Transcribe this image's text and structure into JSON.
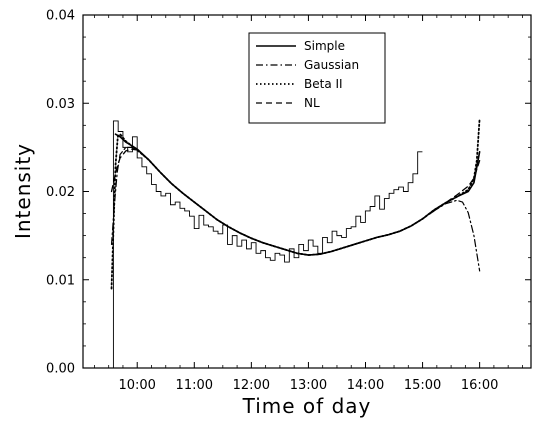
{
  "chart_data": {
    "type": "line",
    "title": "",
    "xlabel": "Time of day",
    "ylabel": "Intensity",
    "xlim": [
      9.05,
      16.9
    ],
    "ylim": [
      0.0,
      0.04
    ],
    "x_ticks": [
      10,
      11,
      12,
      13,
      14,
      15,
      16
    ],
    "x_tick_labels": [
      "10:00",
      "11:00",
      "12:00",
      "13:00",
      "14:00",
      "15:00",
      "16:00"
    ],
    "y_ticks": [
      0.0,
      0.01,
      0.02,
      0.03,
      0.04
    ],
    "y_tick_labels": [
      "0.00",
      "0.01",
      "0.02",
      "0.03",
      "0.04"
    ],
    "grid": false,
    "legend_position": "top-center",
    "histogram": {
      "bin_width": 0.0833,
      "start": 9.583,
      "values": [
        0.028,
        0.0268,
        0.025,
        0.0245,
        0.0262,
        0.0238,
        0.0228,
        0.022,
        0.0208,
        0.02,
        0.0195,
        0.0198,
        0.0185,
        0.0188,
        0.0181,
        0.0178,
        0.0172,
        0.0158,
        0.0173,
        0.0162,
        0.016,
        0.0155,
        0.0152,
        0.0162,
        0.014,
        0.015,
        0.0138,
        0.0145,
        0.0135,
        0.0142,
        0.013,
        0.0133,
        0.0125,
        0.0122,
        0.013,
        0.0128,
        0.012,
        0.0135,
        0.0125,
        0.014,
        0.0133,
        0.0145,
        0.0138,
        0.013,
        0.0148,
        0.0142,
        0.0155,
        0.015,
        0.0148,
        0.0158,
        0.016,
        0.0172,
        0.0165,
        0.0178,
        0.0183,
        0.0195,
        0.018,
        0.0192,
        0.0198,
        0.0202,
        0.0205,
        0.02,
        0.021,
        0.022,
        0.0245
      ]
    },
    "series": [
      {
        "name": "Simple",
        "style": "solid",
        "x": [
          9.62,
          9.7,
          9.8,
          9.9,
          10.0,
          10.2,
          10.4,
          10.6,
          10.8,
          11.0,
          11.2,
          11.4,
          11.6,
          11.8,
          12.0,
          12.2,
          12.4,
          12.6,
          12.8,
          13.0,
          13.2,
          13.4,
          13.6,
          13.8,
          14.0,
          14.2,
          14.4,
          14.6,
          14.8,
          15.0,
          15.2,
          15.4,
          15.6,
          15.8,
          15.9,
          16.0
        ],
        "y": [
          0.0265,
          0.0262,
          0.0256,
          0.0252,
          0.0248,
          0.0236,
          0.0222,
          0.0209,
          0.0198,
          0.0188,
          0.0178,
          0.0168,
          0.016,
          0.0153,
          0.0147,
          0.0142,
          0.0138,
          0.0134,
          0.013,
          0.0128,
          0.0129,
          0.0132,
          0.0136,
          0.014,
          0.0144,
          0.0148,
          0.0151,
          0.0155,
          0.0161,
          0.0169,
          0.0179,
          0.0187,
          0.0194,
          0.02,
          0.021,
          0.0245
        ]
      },
      {
        "name": "Gaussian",
        "style": "dashdot",
        "x": [
          9.55,
          9.6,
          9.65,
          9.7,
          9.8,
          9.9,
          10.0,
          10.2,
          10.4,
          10.6,
          10.8,
          11.0,
          11.2,
          11.4,
          11.6,
          11.8,
          12.0,
          12.2,
          12.4,
          12.6,
          12.8,
          13.0,
          13.2,
          13.4,
          13.6,
          13.8,
          14.0,
          14.2,
          14.4,
          14.6,
          14.8,
          15.0,
          15.2,
          15.4,
          15.6,
          15.7,
          15.8,
          15.9,
          16.0
        ],
        "y": [
          0.014,
          0.0185,
          0.0222,
          0.0242,
          0.025,
          0.025,
          0.0247,
          0.0236,
          0.0222,
          0.0209,
          0.0198,
          0.0188,
          0.0178,
          0.0168,
          0.016,
          0.0153,
          0.0147,
          0.0142,
          0.0138,
          0.0134,
          0.013,
          0.0128,
          0.0129,
          0.0132,
          0.0136,
          0.014,
          0.0144,
          0.0148,
          0.0151,
          0.0155,
          0.0161,
          0.0169,
          0.0178,
          0.0186,
          0.019,
          0.0188,
          0.0176,
          0.015,
          0.011
        ]
      },
      {
        "name": "Beta II",
        "style": "dotted",
        "x": [
          9.55,
          9.58,
          9.62,
          9.66,
          9.7,
          9.8,
          9.9,
          10.0,
          10.2,
          10.4,
          10.6,
          10.8,
          11.0,
          11.2,
          11.4,
          11.6,
          11.8,
          12.0,
          12.2,
          12.4,
          12.6,
          12.8,
          13.0,
          13.2,
          13.4,
          13.6,
          13.8,
          14.0,
          14.2,
          14.4,
          14.6,
          14.8,
          15.0,
          15.2,
          15.4,
          15.6,
          15.8,
          15.9,
          15.95,
          16.0
        ],
        "y": [
          0.009,
          0.015,
          0.023,
          0.0262,
          0.0265,
          0.0257,
          0.0252,
          0.0247,
          0.0236,
          0.0222,
          0.0209,
          0.0198,
          0.0188,
          0.0178,
          0.0168,
          0.016,
          0.0153,
          0.0147,
          0.0142,
          0.0138,
          0.0134,
          0.013,
          0.0128,
          0.0129,
          0.0132,
          0.0136,
          0.014,
          0.0144,
          0.0148,
          0.0151,
          0.0155,
          0.0161,
          0.0169,
          0.0179,
          0.0187,
          0.0194,
          0.0202,
          0.0215,
          0.0235,
          0.0283
        ]
      },
      {
        "name": "NL",
        "style": "dashed",
        "x": [
          9.55,
          9.6,
          9.65,
          9.7,
          9.8,
          9.9,
          10.0,
          10.2,
          10.4,
          10.6,
          10.8,
          11.0,
          11.2,
          11.4,
          11.6,
          11.8,
          12.0,
          12.2,
          12.4,
          12.6,
          12.8,
          13.0,
          13.2,
          13.4,
          13.6,
          13.8,
          14.0,
          14.2,
          14.4,
          14.6,
          14.8,
          15.0,
          15.2,
          15.4,
          15.6,
          15.8,
          15.9,
          16.0
        ],
        "y": [
          0.02,
          0.0215,
          0.0228,
          0.0238,
          0.0246,
          0.0248,
          0.0247,
          0.0236,
          0.0222,
          0.0209,
          0.0198,
          0.0188,
          0.0178,
          0.0168,
          0.016,
          0.0153,
          0.0147,
          0.0142,
          0.0138,
          0.0134,
          0.013,
          0.0128,
          0.0129,
          0.0132,
          0.0136,
          0.014,
          0.0144,
          0.0148,
          0.0151,
          0.0155,
          0.0161,
          0.0169,
          0.0178,
          0.0187,
          0.0196,
          0.0206,
          0.0215,
          0.0235
        ]
      }
    ]
  }
}
